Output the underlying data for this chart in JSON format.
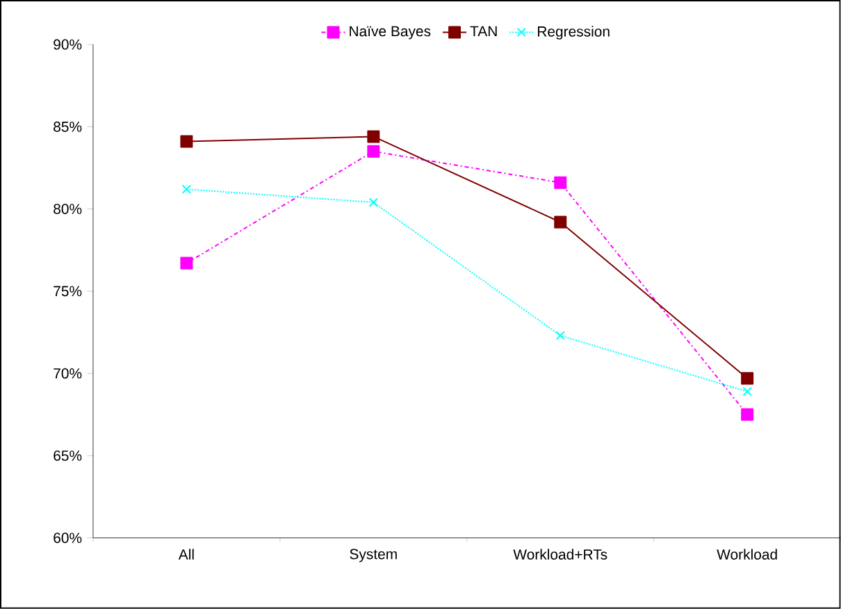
{
  "chart_data": {
    "type": "line",
    "categories": [
      "All",
      "System",
      "Workload+RTs",
      "Workload"
    ],
    "series": [
      {
        "name": "Naïve Bayes",
        "color": "#ff00ff",
        "values": [
          76.7,
          83.5,
          81.6,
          67.5
        ],
        "marker": "square",
        "line_style": "dashdot"
      },
      {
        "name": "TAN",
        "color": "#800000",
        "values": [
          84.1,
          84.4,
          79.2,
          69.7
        ],
        "marker": "square",
        "line_style": "solid"
      },
      {
        "name": "Regression",
        "color": "#00ffff",
        "values": [
          81.2,
          80.4,
          72.3,
          68.9
        ],
        "marker": "cross",
        "line_style": "dotted"
      }
    ],
    "ylim": [
      60,
      90
    ],
    "yticks": [
      {
        "value": 60,
        "label": "60%"
      },
      {
        "value": 65,
        "label": "65%"
      },
      {
        "value": 70,
        "label": "70%"
      },
      {
        "value": 75,
        "label": "75%"
      },
      {
        "value": 80,
        "label": "80%"
      },
      {
        "value": 85,
        "label": "85%"
      },
      {
        "value": 90,
        "label": "90%"
      }
    ],
    "grid": false,
    "legend": "top"
  }
}
